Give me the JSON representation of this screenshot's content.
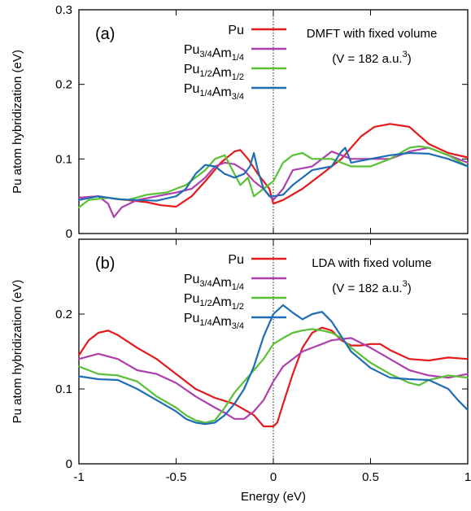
{
  "chart_data": [
    {
      "type": "line",
      "panel_label": "(a)",
      "annotation_lines": [
        "DMFT with fixed volume",
        "(V = 182 a.u."
      ],
      "annotation_sup": "3",
      "annotation_close": ")",
      "ylabel": "Pu atom hybridization (eV)",
      "xlim": [
        -1,
        1
      ],
      "ylim": [
        0,
        0.3
      ],
      "yticks": [
        "0",
        "0.1",
        "0.2",
        "0.3"
      ],
      "legend_position": "top-left",
      "series": [
        {
          "name": "Pu",
          "name_parts": [
            [
              "Pu",
              ""
            ]
          ],
          "color": "#e41a1c",
          "x": [
            -1,
            -0.9,
            -0.8,
            -0.72,
            -0.65,
            -0.58,
            -0.5,
            -0.42,
            -0.35,
            -0.27,
            -0.2,
            -0.17,
            -0.13,
            -0.08,
            -0.02,
            0.0,
            0.05,
            0.15,
            0.25,
            0.35,
            0.45,
            0.52,
            0.6,
            0.7,
            0.8,
            0.9,
            1.0
          ],
          "y": [
            0.048,
            0.05,
            0.046,
            0.044,
            0.042,
            0.038,
            0.036,
            0.05,
            0.07,
            0.095,
            0.11,
            0.112,
            0.1,
            0.08,
            0.06,
            0.04,
            0.045,
            0.06,
            0.08,
            0.1,
            0.13,
            0.143,
            0.147,
            0.143,
            0.12,
            0.108,
            0.102
          ]
        },
        {
          "name": "Pu3/4Am1/4",
          "name_parts": [
            [
              "Pu",
              "3/4"
            ],
            [
              "Am",
              "1/4"
            ]
          ],
          "color": "#b03fae",
          "x": [
            -1,
            -0.9,
            -0.85,
            -0.82,
            -0.78,
            -0.7,
            -0.6,
            -0.5,
            -0.42,
            -0.35,
            -0.3,
            -0.25,
            -0.2,
            -0.15,
            -0.1,
            -0.05,
            0.0,
            0.05,
            0.1,
            0.2,
            0.3,
            0.4,
            0.5,
            0.6,
            0.7,
            0.8,
            0.9,
            1.0
          ],
          "y": [
            0.048,
            0.05,
            0.04,
            0.022,
            0.035,
            0.045,
            0.05,
            0.055,
            0.06,
            0.075,
            0.09,
            0.095,
            0.093,
            0.085,
            0.07,
            0.06,
            0.045,
            0.06,
            0.085,
            0.09,
            0.11,
            0.1,
            0.1,
            0.1,
            0.11,
            0.115,
            0.105,
            0.095
          ]
        },
        {
          "name": "Pu1/2Am1/2",
          "name_parts": [
            [
              "Pu",
              "1/2"
            ],
            [
              "Am",
              "1/2"
            ]
          ],
          "color": "#59c136",
          "x": [
            -1,
            -0.95,
            -0.85,
            -0.75,
            -0.65,
            -0.55,
            -0.45,
            -0.35,
            -0.3,
            -0.25,
            -0.2,
            -0.17,
            -0.13,
            -0.1,
            -0.05,
            0.0,
            0.05,
            0.1,
            0.15,
            0.2,
            0.3,
            0.4,
            0.5,
            0.6,
            0.7,
            0.75,
            0.8,
            0.9,
            1.0
          ],
          "y": [
            0.035,
            0.045,
            0.048,
            0.045,
            0.052,
            0.055,
            0.065,
            0.085,
            0.1,
            0.105,
            0.08,
            0.065,
            0.075,
            0.05,
            0.06,
            0.07,
            0.095,
            0.105,
            0.108,
            0.1,
            0.1,
            0.09,
            0.09,
            0.1,
            0.115,
            0.117,
            0.115,
            0.105,
            0.09
          ]
        },
        {
          "name": "Pu1/4Am3/4",
          "name_parts": [
            [
              "Pu",
              "1/4"
            ],
            [
              "Am",
              "3/4"
            ]
          ],
          "color": "#1f6eb5",
          "x": [
            -1,
            -0.9,
            -0.8,
            -0.7,
            -0.6,
            -0.5,
            -0.45,
            -0.4,
            -0.35,
            -0.3,
            -0.25,
            -0.2,
            -0.15,
            -0.12,
            -0.1,
            -0.08,
            -0.05,
            -0.02,
            0.0,
            0.05,
            0.1,
            0.2,
            0.3,
            0.35,
            0.37,
            0.4,
            0.5,
            0.6,
            0.7,
            0.8,
            0.9,
            1.0
          ],
          "y": [
            0.045,
            0.05,
            0.046,
            0.045,
            0.044,
            0.05,
            0.06,
            0.08,
            0.092,
            0.09,
            0.08,
            0.075,
            0.08,
            0.09,
            0.108,
            0.085,
            0.06,
            0.05,
            0.05,
            0.052,
            0.065,
            0.085,
            0.09,
            0.11,
            0.115,
            0.095,
            0.1,
            0.105,
            0.108,
            0.107,
            0.1,
            0.09
          ]
        }
      ]
    },
    {
      "type": "line",
      "panel_label": "(b)",
      "annotation_lines": [
        "LDA with fixed volume",
        "(V = 182 a.u."
      ],
      "annotation_sup": "3",
      "annotation_close": ")",
      "xlabel": "Energy (eV)",
      "ylabel": "Pu atom hybridization (eV)",
      "xlim": [
        -1,
        1
      ],
      "ylim": [
        0,
        0.3
      ],
      "xticks": [
        "-1",
        "-0.5",
        "0",
        "0.5",
        "1"
      ],
      "yticks": [
        "0",
        "0.1",
        "0.2"
      ],
      "legend_position": "top-left",
      "series": [
        {
          "name": "Pu",
          "name_parts": [
            [
              "Pu",
              ""
            ]
          ],
          "color": "#e41a1c",
          "x": [
            -1,
            -0.95,
            -0.9,
            -0.85,
            -0.8,
            -0.7,
            -0.6,
            -0.5,
            -0.4,
            -0.3,
            -0.2,
            -0.1,
            -0.05,
            0.0,
            0.02,
            0.05,
            0.1,
            0.15,
            0.2,
            0.25,
            0.3,
            0.35,
            0.4,
            0.45,
            0.5,
            0.55,
            0.6,
            0.7,
            0.8,
            0.9,
            1.0
          ],
          "y": [
            0.145,
            0.165,
            0.175,
            0.178,
            0.172,
            0.155,
            0.14,
            0.12,
            0.1,
            0.088,
            0.08,
            0.065,
            0.05,
            0.05,
            0.055,
            0.08,
            0.12,
            0.155,
            0.175,
            0.182,
            0.178,
            0.165,
            0.158,
            0.158,
            0.16,
            0.16,
            0.152,
            0.14,
            0.138,
            0.142,
            0.14
          ]
        },
        {
          "name": "Pu3/4Am1/4",
          "name_parts": [
            [
              "Pu",
              "3/4"
            ],
            [
              "Am",
              "1/4"
            ]
          ],
          "color": "#b03fae",
          "x": [
            -1,
            -0.9,
            -0.8,
            -0.7,
            -0.6,
            -0.5,
            -0.4,
            -0.3,
            -0.25,
            -0.2,
            -0.15,
            -0.1,
            -0.05,
            0.0,
            0.05,
            0.1,
            0.15,
            0.2,
            0.25,
            0.3,
            0.4,
            0.5,
            0.6,
            0.7,
            0.8,
            0.9,
            1.0
          ],
          "y": [
            0.14,
            0.147,
            0.14,
            0.125,
            0.12,
            0.108,
            0.09,
            0.075,
            0.068,
            0.06,
            0.06,
            0.07,
            0.085,
            0.11,
            0.13,
            0.14,
            0.15,
            0.155,
            0.16,
            0.165,
            0.168,
            0.155,
            0.14,
            0.125,
            0.118,
            0.115,
            0.12
          ]
        },
        {
          "name": "Pu1/2Am1/2",
          "name_parts": [
            [
              "Pu",
              "1/2"
            ],
            [
              "Am",
              "1/2"
            ]
          ],
          "color": "#59c136",
          "x": [
            -1,
            -0.9,
            -0.8,
            -0.7,
            -0.6,
            -0.5,
            -0.45,
            -0.4,
            -0.35,
            -0.3,
            -0.25,
            -0.2,
            -0.15,
            -0.1,
            -0.05,
            0.0,
            0.05,
            0.1,
            0.15,
            0.2,
            0.25,
            0.3,
            0.35,
            0.4,
            0.5,
            0.6,
            0.7,
            0.75,
            0.8,
            0.9,
            1.0
          ],
          "y": [
            0.13,
            0.12,
            0.118,
            0.11,
            0.09,
            0.075,
            0.065,
            0.058,
            0.055,
            0.058,
            0.075,
            0.095,
            0.11,
            0.125,
            0.14,
            0.16,
            0.168,
            0.175,
            0.178,
            0.18,
            0.178,
            0.175,
            0.168,
            0.155,
            0.135,
            0.12,
            0.108,
            0.105,
            0.112,
            0.118,
            0.115
          ]
        },
        {
          "name": "Pu1/4Am3/4",
          "name_parts": [
            [
              "Pu",
              "1/4"
            ],
            [
              "Am",
              "3/4"
            ]
          ],
          "color": "#1f6eb5",
          "x": [
            -1,
            -0.9,
            -0.8,
            -0.7,
            -0.6,
            -0.5,
            -0.45,
            -0.4,
            -0.35,
            -0.3,
            -0.25,
            -0.2,
            -0.15,
            -0.1,
            -0.05,
            0.0,
            0.05,
            0.1,
            0.15,
            0.2,
            0.25,
            0.3,
            0.35,
            0.4,
            0.5,
            0.6,
            0.7,
            0.8,
            0.9,
            0.95,
            1.0
          ],
          "y": [
            0.117,
            0.113,
            0.112,
            0.1,
            0.085,
            0.07,
            0.06,
            0.055,
            0.053,
            0.055,
            0.065,
            0.08,
            0.1,
            0.13,
            0.17,
            0.2,
            0.212,
            0.202,
            0.193,
            0.2,
            0.203,
            0.19,
            0.17,
            0.15,
            0.128,
            0.115,
            0.113,
            0.112,
            0.1,
            0.085,
            0.072
          ]
        }
      ]
    }
  ]
}
